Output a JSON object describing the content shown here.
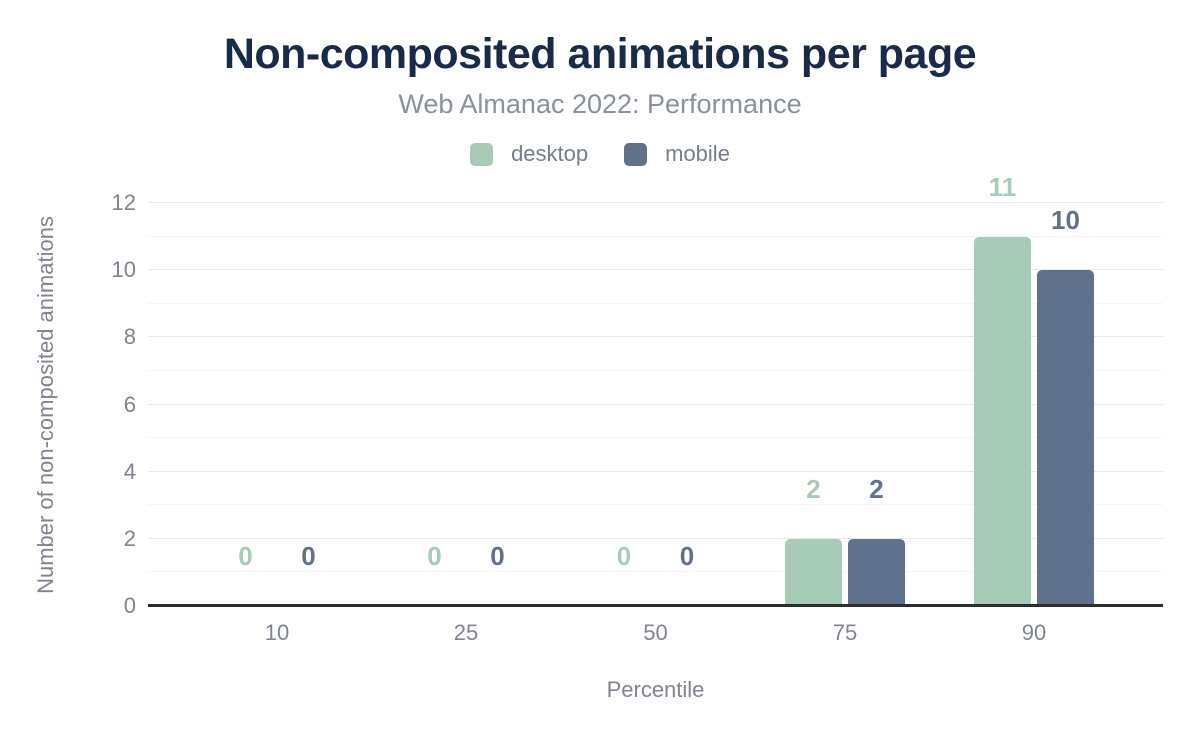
{
  "header": {
    "title": "Non-composited animations per page",
    "subtitle": "Web Almanac 2022: Performance"
  },
  "legend": {
    "items": [
      {
        "label": "desktop",
        "color": "#a8cbb8"
      },
      {
        "label": "mobile",
        "color": "#60718c"
      }
    ]
  },
  "chart_data": {
    "type": "bar",
    "title": "Non-composited animations per page",
    "subtitle": "Web Almanac 2022: Performance",
    "categories": [
      "10",
      "25",
      "50",
      "75",
      "90"
    ],
    "series": [
      {
        "name": "desktop",
        "color": "#a8cbb8",
        "values": [
          0,
          0,
          0,
          2,
          11
        ]
      },
      {
        "name": "mobile",
        "color": "#60718c",
        "values": [
          0,
          0,
          0,
          2,
          10
        ]
      }
    ],
    "xlabel": "Percentile",
    "ylabel": "Number of non-composited animations",
    "ylim": [
      0,
      12
    ],
    "yticks": [
      0,
      2,
      4,
      6,
      8,
      10,
      12
    ],
    "minor_gridlines": [
      1,
      3,
      5,
      7,
      9,
      11
    ],
    "grid": "horizontal, major and minor lines",
    "legend_position": "top",
    "data_labels": true
  },
  "colors": {
    "background": "#ffffff",
    "title_text": "#1a2b49",
    "subtitle_text": "#8a909c",
    "legend_text": "#767d89",
    "axis_text": "#7f848e",
    "grid_major": "#e8e8ec",
    "grid_minor": "#f5f5f7",
    "baseline": "#2d2d2d",
    "desktop": "#a8cbb8",
    "mobile": "#60718c"
  }
}
